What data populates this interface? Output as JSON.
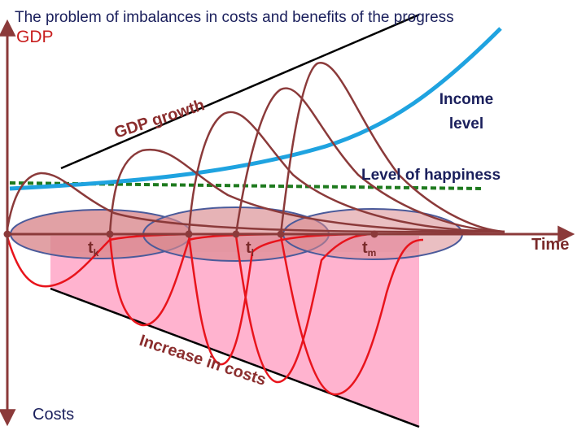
{
  "title": "The problem of imbalances in costs and benefits of the progress",
  "labels": {
    "gdp": "GDP",
    "gdp_growth": "GDP growth",
    "income_level": [
      "Income",
      "level"
    ],
    "happiness": "Level of happiness",
    "time": "Time",
    "costs": "Costs",
    "increase_costs": "Increase in costs",
    "tk_main": "t",
    "tk_sub": "k",
    "tl_main": "t",
    "tl_sub": "l",
    "tm_main": "t",
    "tm_sub": "m"
  },
  "colors": {
    "axis": "#8b3a3a",
    "benefit_wave": "#8b3a3a",
    "cost_wave": "#e8141c",
    "income": "#1fa3e0",
    "happiness": "#1e7a1e",
    "envelope": "#000000",
    "cost_fill": "#ffb3cf",
    "ellipse_fill": "#d98a8f",
    "ellipse_stroke": "#4a5a9a",
    "title": "#1a1f5c",
    "gdp_text": "#c81e1e",
    "brown_text": "#8b2e2e"
  }
}
